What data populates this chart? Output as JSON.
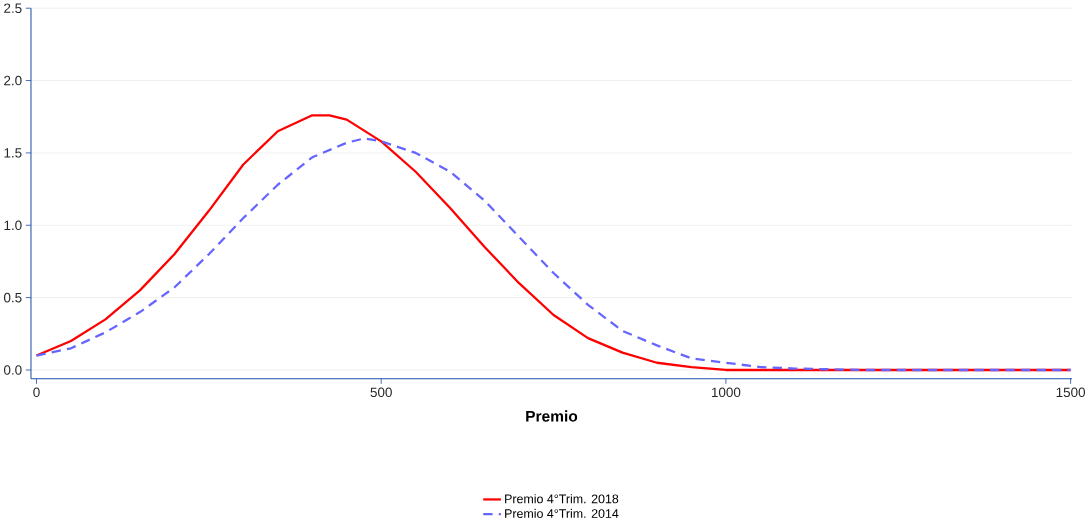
{
  "chart_data": {
    "type": "line",
    "xlabel": "Premio",
    "x": [
      0,
      50,
      100,
      150,
      200,
      250,
      300,
      350,
      400,
      425,
      450,
      500,
      550,
      600,
      650,
      700,
      750,
      800,
      850,
      900,
      950,
      1000,
      1100,
      1500
    ],
    "series": [
      {
        "name": "Premio  4°Trim. 2018",
        "color": "#ff0000",
        "line_style": "solid",
        "values": [
          0.1,
          0.2,
          0.35,
          0.55,
          0.8,
          1.1,
          1.42,
          1.65,
          1.76,
          1.76,
          1.73,
          1.58,
          1.37,
          1.12,
          0.85,
          0.6,
          0.38,
          0.22,
          0.12,
          0.05,
          0.02,
          0.0,
          0.0,
          0.0
        ]
      },
      {
        "name": "Premio  4°Trim. 2014",
        "color": "#6666ff",
        "line_style": "dashed",
        "x": [
          0,
          50,
          100,
          150,
          200,
          250,
          300,
          350,
          400,
          450,
          475,
          500,
          550,
          600,
          650,
          700,
          750,
          800,
          850,
          900,
          950,
          1000,
          1050,
          1100,
          1200,
          1500
        ],
        "values": [
          0.1,
          0.15,
          0.26,
          0.4,
          0.57,
          0.8,
          1.05,
          1.28,
          1.47,
          1.57,
          1.6,
          1.58,
          1.5,
          1.37,
          1.17,
          0.92,
          0.67,
          0.45,
          0.27,
          0.17,
          0.08,
          0.05,
          0.02,
          0.01,
          0.0,
          0.0
        ]
      }
    ],
    "xlim": [
      -8,
      1502
    ],
    "ylim": [
      -0.06,
      2.5
    ],
    "xticks": [
      0,
      500,
      1000,
      1500
    ],
    "yticks": [
      {
        "value": 0,
        "label": "0.0"
      },
      {
        "value": 0.5,
        "label": "0.5"
      },
      {
        "value": 1,
        "label": "1.0"
      },
      {
        "value": 1.5,
        "label": "1.5"
      },
      {
        "value": 2,
        "label": "2.0"
      },
      {
        "value": 2.5,
        "label": "2.5"
      }
    ],
    "grid": "y",
    "legend": "bottom",
    "marker": "none"
  }
}
